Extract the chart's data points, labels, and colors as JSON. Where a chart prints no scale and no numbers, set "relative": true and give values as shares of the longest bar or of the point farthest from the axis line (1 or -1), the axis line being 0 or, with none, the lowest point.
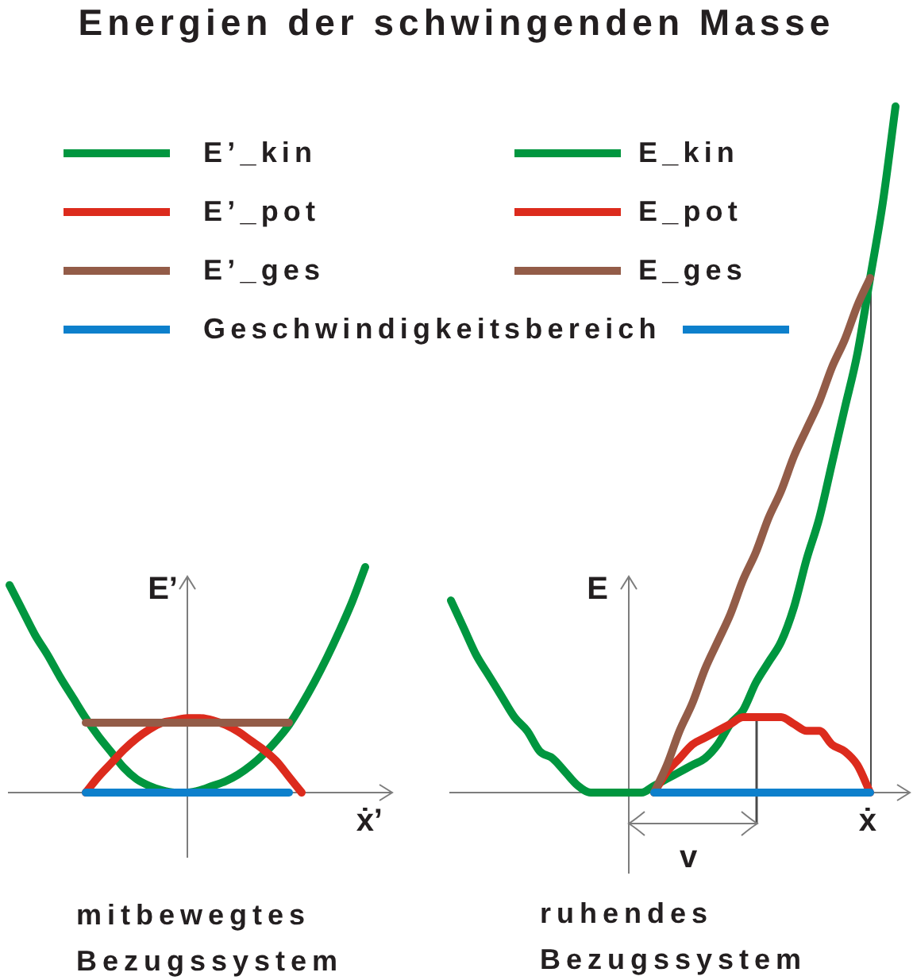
{
  "chart_data": [
    {
      "type": "line",
      "title": "Energien der schwingenden Masse",
      "xlabel": "ẋ’",
      "ylabel": "E’",
      "annotations": [
        "mitbewegtes Bezugssystem"
      ],
      "relative": true,
      "legend": "top",
      "categories": [
        null,
        null,
        null,
        null,
        null,
        null,
        null,
        null,
        null,
        null,
        null,
        null,
        null,
        null,
        null,
        null,
        null,
        null,
        null,
        null,
        null,
        null,
        null,
        null,
        null,
        null,
        null,
        null,
        null,
        null,
        null
      ],
      "series": [
        {
          "name": "E’_kin",
          "color": "#00963f",
          "values": [
            0.92,
            0.81,
            0.7,
            0.61,
            0.51,
            0.42,
            0.33,
            0.25,
            0.18,
            0.11,
            0.06,
            0.03,
            0.01,
            0,
            0,
            0.01,
            0.03,
            0.05,
            0.08,
            0.12,
            0.17,
            0.23,
            0.3,
            0.39,
            0.49,
            0.6,
            0.72,
            0.85,
            1,
            null,
            null
          ]
        },
        {
          "name": "E’_pot",
          "color": "#dc2b1d",
          "values": [
            null,
            null,
            null,
            null,
            null,
            null,
            0,
            0.07,
            0.13,
            0.19,
            0.24,
            0.28,
            0.31,
            0.32,
            0.33,
            0.33,
            0.32,
            0.3,
            0.27,
            0.23,
            0.19,
            0.14,
            0.07,
            0,
            null,
            null,
            null,
            null,
            null,
            null,
            null
          ]
        },
        {
          "name": "E’_ges",
          "color": "#935c48",
          "values": [
            null,
            null,
            null,
            null,
            null,
            null,
            0.31,
            0.31,
            0.31,
            0.31,
            0.31,
            0.31,
            0.31,
            0.31,
            0.31,
            0.31,
            0.31,
            0.31,
            0.31,
            0.31,
            0.31,
            0.31,
            0.31,
            null,
            null,
            null,
            null,
            null,
            null,
            null,
            null
          ]
        },
        {
          "name": "Geschwindigkeitsbereich",
          "color": "#0d80cc",
          "values": [
            null,
            null,
            null,
            null,
            null,
            null,
            0,
            0,
            0,
            0,
            0,
            0,
            0,
            0,
            0,
            0,
            0,
            0,
            0,
            0,
            0,
            0,
            0,
            null,
            null,
            null,
            null,
            null,
            null,
            null,
            null
          ]
        }
      ]
    },
    {
      "type": "line",
      "xlabel": "ẋ",
      "ylabel": "E",
      "annotations": [
        "v",
        "ruhendes Bezugssystem"
      ],
      "relative": true,
      "legend": "top",
      "categories": [
        null,
        null,
        null,
        null,
        null,
        null,
        null,
        null,
        null,
        null,
        null,
        null,
        null,
        null,
        null,
        null,
        null,
        null,
        null,
        null,
        null,
        null,
        null,
        null,
        null,
        null,
        null,
        null,
        null,
        null,
        null,
        null,
        null,
        null,
        null,
        null,
        null
      ],
      "series": [
        {
          "name": "E_kin",
          "color": "#00963f",
          "values": [
            0.28,
            0.24,
            0.2,
            0.17,
            0.14,
            0.11,
            0.09,
            0.06,
            0.05,
            0.03,
            0.01,
            0,
            0,
            0,
            0,
            0,
            0.01,
            0.02,
            0.03,
            0.04,
            0.05,
            0.07,
            0.1,
            0.12,
            0.16,
            0.19,
            0.22,
            0.27,
            0.34,
            0.4,
            0.48,
            0.56,
            0.64,
            0.75,
            0.86,
            1,
            null
          ]
        },
        {
          "name": "E_pot",
          "color": "#dc2b1d",
          "values": [
            null,
            null,
            null,
            null,
            null,
            null,
            null,
            null,
            null,
            null,
            null,
            null,
            null,
            null,
            null,
            null,
            0,
            0.03,
            0.05,
            0.07,
            0.08,
            0.09,
            0.1,
            0.11,
            0.11,
            0.11,
            0.11,
            0.1,
            0.09,
            0.09,
            0.07,
            0.06,
            0.04,
            0,
            null,
            null,
            null
          ]
        },
        {
          "name": "E_ges",
          "color": "#935c48",
          "values": [
            null,
            null,
            null,
            null,
            null,
            null,
            null,
            null,
            null,
            null,
            null,
            null,
            null,
            null,
            null,
            null,
            0,
            0.04,
            0.09,
            0.13,
            0.18,
            0.22,
            0.26,
            0.31,
            0.35,
            0.4,
            0.44,
            0.49,
            0.53,
            0.57,
            0.62,
            0.66,
            0.71,
            0.75,
            null,
            null,
            null
          ]
        },
        {
          "name": "Geschwindigkeitsbereich",
          "color": "#0d80cc",
          "values": [
            null,
            null,
            null,
            null,
            null,
            null,
            null,
            null,
            null,
            null,
            null,
            null,
            null,
            null,
            null,
            null,
            0,
            0,
            0,
            0,
            0,
            0,
            0,
            0,
            0,
            0,
            0,
            0,
            0,
            0,
            0,
            0,
            0,
            0,
            null,
            null,
            null
          ]
        }
      ]
    }
  ]
}
